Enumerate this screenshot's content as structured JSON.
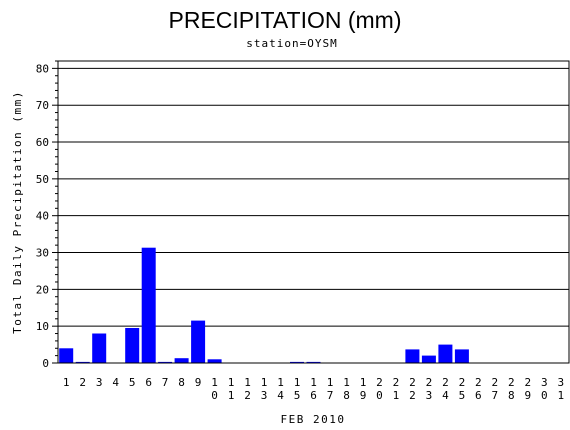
{
  "chart_data": {
    "type": "bar",
    "title": "PRECIPITATION (mm)",
    "subtitle": "station=OYSM",
    "xlabel": "FEB 2010",
    "ylabel": "Total Daily Precipitation (mm)",
    "ylim": [
      0,
      82
    ],
    "yticks": [
      0,
      10,
      20,
      30,
      40,
      50,
      60,
      70,
      80
    ],
    "grid": true,
    "bar_color": "#0000ff",
    "categories": [
      "1",
      "2",
      "3",
      "4",
      "5",
      "6",
      "7",
      "8",
      "9",
      "10",
      "11",
      "12",
      "13",
      "14",
      "15",
      "16",
      "17",
      "18",
      "19",
      "20",
      "21",
      "22",
      "23",
      "24",
      "25",
      "26",
      "27",
      "28",
      "29",
      "30",
      "31"
    ],
    "values": [
      4.0,
      0.3,
      8.0,
      0,
      9.5,
      31.3,
      0.3,
      1.3,
      11.5,
      1.0,
      0,
      0,
      0,
      0,
      0.3,
      0.3,
      0,
      0,
      0,
      0,
      0,
      3.7,
      2.0,
      5.0,
      3.7,
      0,
      0,
      0,
      0,
      0,
      0
    ]
  }
}
